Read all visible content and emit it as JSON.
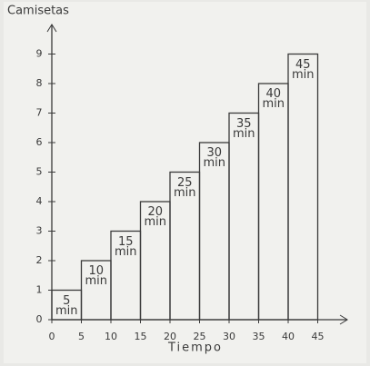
{
  "chart_data": {
    "type": "histogram",
    "xlabel": "Tiempo",
    "ylabel": "Camisetas",
    "bins": [
      0,
      5,
      10,
      15,
      20,
      25,
      30,
      35,
      40,
      45
    ],
    "values": [
      1,
      2,
      3,
      4,
      5,
      6,
      7,
      8,
      9
    ],
    "bar_labels": [
      "5 min",
      "10 min",
      "15 min",
      "20 min",
      "25 min",
      "30 min",
      "35 min",
      "40 min",
      "45 min"
    ],
    "color": "#3a3a3a",
    "xlim": [
      0,
      50
    ],
    "xticks": [
      0,
      5,
      10,
      15,
      20,
      25,
      30,
      35,
      40,
      45
    ],
    "ylim": [
      0,
      10
    ],
    "yticks": [
      0,
      1,
      2,
      3,
      4,
      5,
      6,
      7,
      8,
      9
    ]
  }
}
